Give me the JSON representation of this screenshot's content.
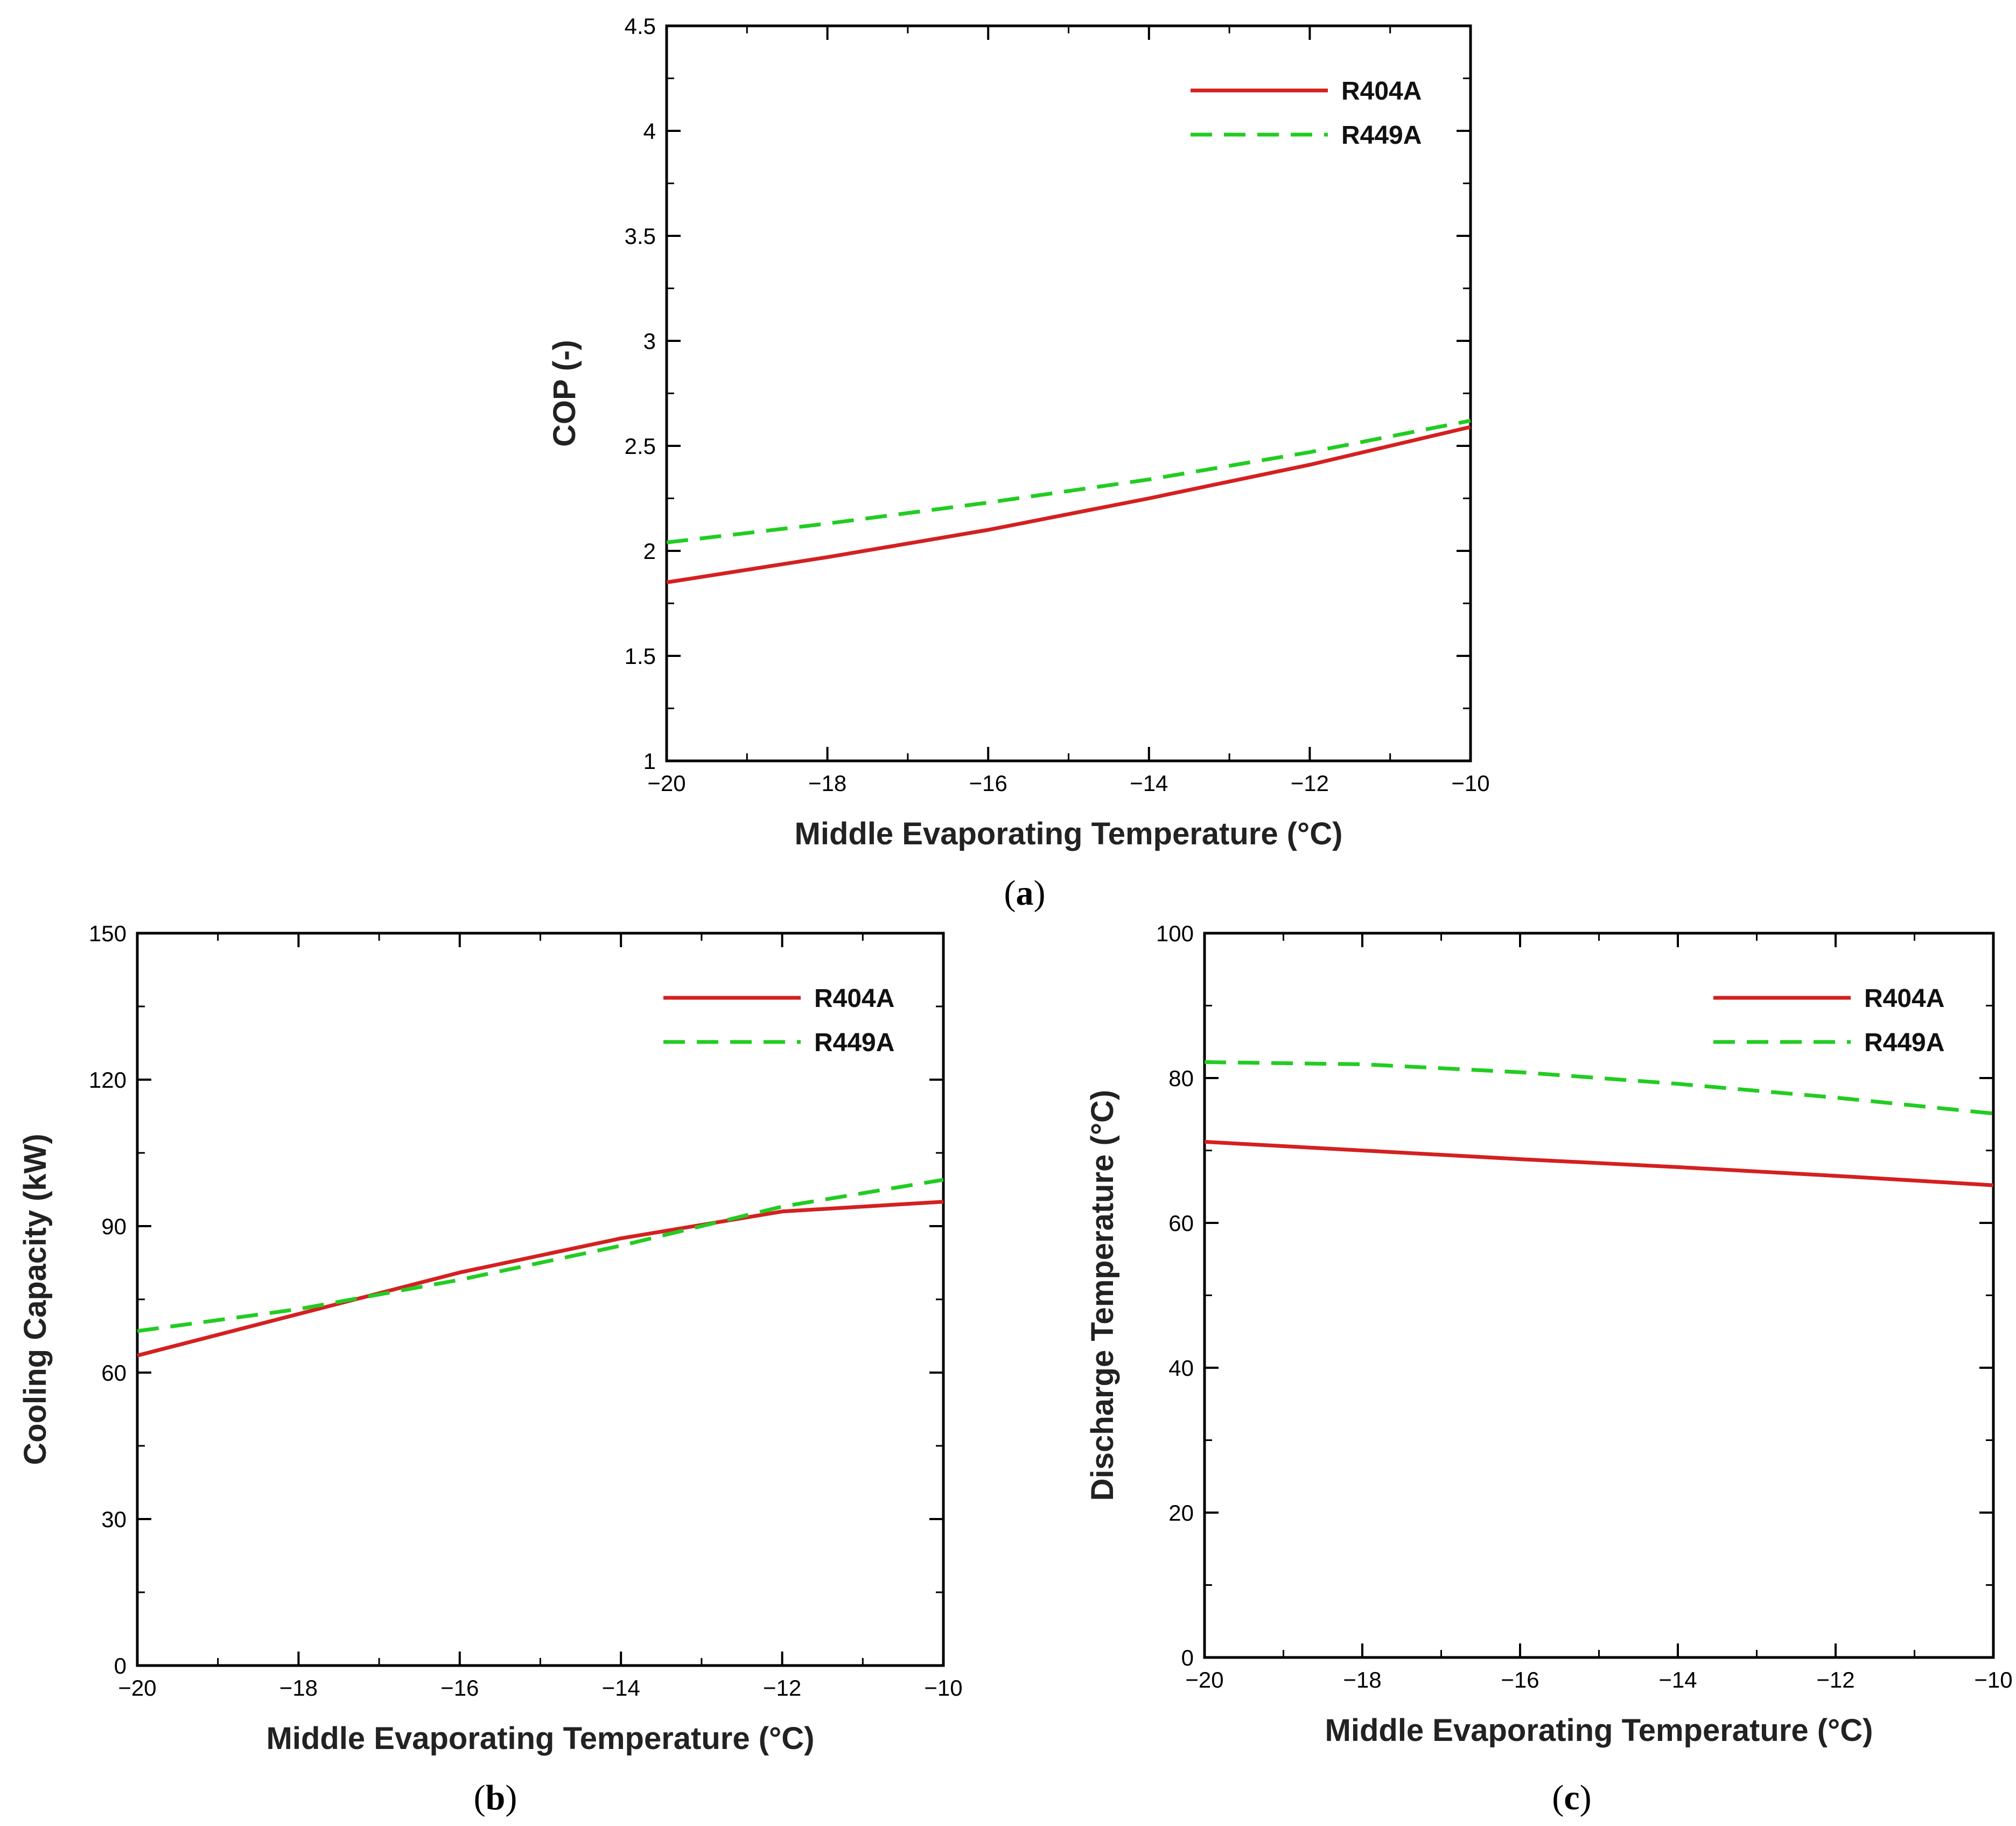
{
  "chart_data": [
    {
      "id": "a",
      "panel_label": "a",
      "type": "line",
      "title": "",
      "xlabel": "Middle Evaporating Temperature (°C)",
      "ylabel": "COP (-)",
      "xlim": [
        -20,
        -10
      ],
      "ylim": [
        1,
        4.5
      ],
      "xticks": [
        -20,
        -18,
        -16,
        -14,
        -12,
        -10
      ],
      "yticks": [
        1,
        1.5,
        2,
        2.5,
        3,
        3.5,
        4,
        4.5
      ],
      "xtick_labels": [
        "−20",
        "−18",
        "−16",
        "−14",
        "−12",
        "−10"
      ],
      "ytick_labels": [
        "1",
        "1.5",
        "2",
        "2.5",
        "3",
        "3.5",
        "4",
        "4.5"
      ],
      "legend_position": "top-right",
      "series": [
        {
          "name": "R404A",
          "color": "#d42020",
          "style": "solid",
          "x": [
            -20,
            -18,
            -16,
            -14,
            -12,
            -10
          ],
          "y": [
            1.85,
            1.97,
            2.1,
            2.25,
            2.41,
            2.59
          ]
        },
        {
          "name": "R449A",
          "color": "#22cc22",
          "style": "dashed",
          "x": [
            -20,
            -18,
            -16,
            -14,
            -12,
            -10
          ],
          "y": [
            2.04,
            2.13,
            2.23,
            2.34,
            2.47,
            2.62
          ]
        }
      ]
    },
    {
      "id": "b",
      "panel_label": "b",
      "type": "line",
      "title": "",
      "xlabel": "Middle Evaporating Temperature (°C)",
      "ylabel": "Cooling Capacity (kW)",
      "xlim": [
        -20,
        -10
      ],
      "ylim": [
        0,
        150
      ],
      "xticks": [
        -20,
        -18,
        -16,
        -14,
        -12,
        -10
      ],
      "yticks": [
        0,
        30,
        60,
        90,
        120,
        150
      ],
      "xtick_labels": [
        "−20",
        "−18",
        "−16",
        "−14",
        "−12",
        "−10"
      ],
      "ytick_labels": [
        "0",
        "30",
        "60",
        "90",
        "120",
        "150"
      ],
      "legend_position": "top-right",
      "series": [
        {
          "name": "R404A",
          "color": "#d42020",
          "style": "solid",
          "x": [
            -20,
            -18,
            -16,
            -14,
            -12,
            -10
          ],
          "y": [
            63.5,
            72,
            80.5,
            87.5,
            93,
            95
          ]
        },
        {
          "name": "R449A",
          "color": "#22cc22",
          "style": "dashed",
          "x": [
            -20,
            -18,
            -16,
            -14,
            -12,
            -10
          ],
          "y": [
            68.5,
            73,
            79,
            86,
            94,
            99.5
          ]
        }
      ]
    },
    {
      "id": "c",
      "panel_label": "c",
      "type": "line",
      "title": "",
      "xlabel": "Middle Evaporating Temperature (°C)",
      "ylabel": "Discharge Temperature (°C)",
      "xlim": [
        -20,
        -10
      ],
      "ylim": [
        0,
        100
      ],
      "xticks": [
        -20,
        -18,
        -16,
        -14,
        -12,
        -10
      ],
      "yticks": [
        0,
        20,
        40,
        60,
        80,
        100
      ],
      "xtick_labels": [
        "−20",
        "−18",
        "−16",
        "−14",
        "−12",
        "−10"
      ],
      "ytick_labels": [
        "0",
        "20",
        "40",
        "60",
        "80",
        "100"
      ],
      "legend_position": "top-right",
      "series": [
        {
          "name": "R404A",
          "color": "#d42020",
          "style": "solid",
          "x": [
            -20,
            -18,
            -16,
            -14,
            -12,
            -10
          ],
          "y": [
            71.2,
            70,
            68.8,
            67.7,
            66.5,
            65.2
          ]
        },
        {
          "name": "R449A",
          "color": "#22cc22",
          "style": "dashed",
          "x": [
            -20,
            -18,
            -16,
            -14,
            -12,
            -10
          ],
          "y": [
            82.2,
            81.9,
            80.8,
            79.2,
            77.3,
            75.1
          ]
        }
      ]
    }
  ]
}
